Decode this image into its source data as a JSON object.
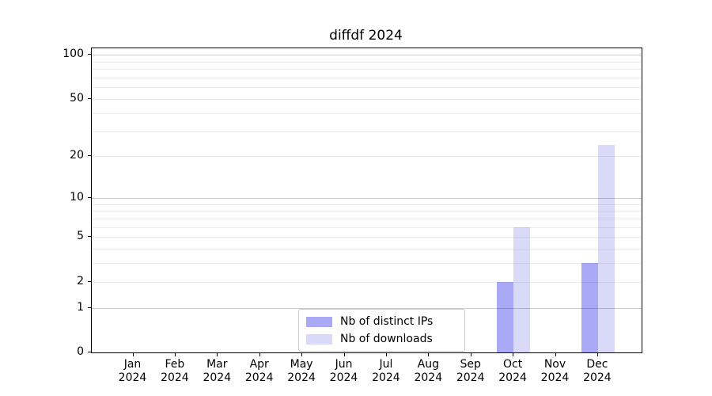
{
  "chart_data": {
    "type": "bar",
    "title": "diffdf 2024",
    "categories": [
      {
        "month": "Jan",
        "year": "2024"
      },
      {
        "month": "Feb",
        "year": "2024"
      },
      {
        "month": "Mar",
        "year": "2024"
      },
      {
        "month": "Apr",
        "year": "2024"
      },
      {
        "month": "May",
        "year": "2024"
      },
      {
        "month": "Jun",
        "year": "2024"
      },
      {
        "month": "Jul",
        "year": "2024"
      },
      {
        "month": "Aug",
        "year": "2024"
      },
      {
        "month": "Sep",
        "year": "2024"
      },
      {
        "month": "Oct",
        "year": "2024"
      },
      {
        "month": "Nov",
        "year": "2024"
      },
      {
        "month": "Dec",
        "year": "2024"
      }
    ],
    "series": [
      {
        "name": "Nb of distinct IPs",
        "color": "#a9a9f5",
        "values": [
          0,
          0,
          0,
          0,
          0,
          0,
          0,
          0,
          0,
          2,
          0,
          3
        ]
      },
      {
        "name": "Nb of downloads",
        "color": "#d9d9f8",
        "values": [
          0,
          0,
          0,
          0,
          0,
          0,
          0,
          0,
          0,
          6,
          0,
          24
        ]
      }
    ],
    "xlabel": "",
    "ylabel": "",
    "yscale": "log1p",
    "ylim": [
      0,
      111
    ],
    "yticks": [
      0,
      1,
      2,
      5,
      10,
      20,
      50,
      100
    ],
    "gridlines": {
      "minor": [
        2,
        3,
        4,
        5,
        6,
        7,
        8,
        9,
        20,
        30,
        40,
        50,
        60,
        70,
        80,
        90
      ],
      "major": [
        1,
        10,
        100
      ]
    },
    "grid": true,
    "legend_position": "lower center"
  }
}
